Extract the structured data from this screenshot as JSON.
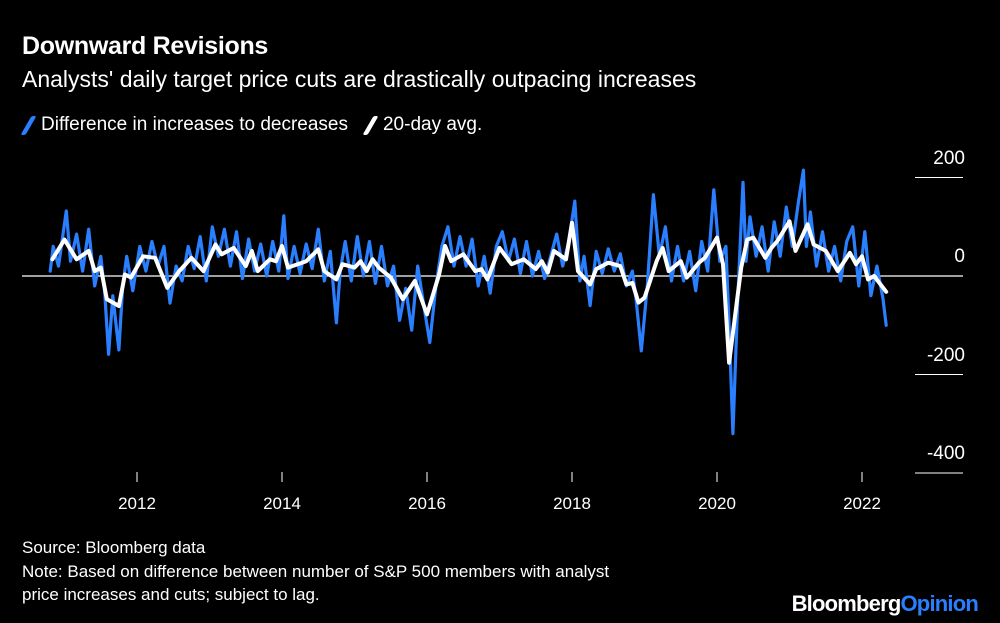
{
  "header": {
    "title": "Downward Revisions",
    "subtitle": "Analysts' daily target price cuts are drastically outpacing increases"
  },
  "footer": {
    "source": "Source: Bloomberg data",
    "note_line1": "Note: Based on difference between number of S&P 500 members with analyst",
    "note_line2": "price increases and cuts; subject to lag.",
    "logo_part1": "Bloomberg",
    "logo_part2": "Opinion"
  },
  "chart_data": {
    "type": "line",
    "title": "Downward Revisions",
    "subtitle": "Analysts' daily target price cuts are drastically outpacing increases",
    "xlabel": "",
    "ylabel": "",
    "ylim": [
      -400,
      200
    ],
    "yticks": [
      "200",
      "0",
      "-200",
      "-400"
    ],
    "xticks": [
      "2012",
      "2014",
      "2016",
      "2018",
      "2020",
      "2022"
    ],
    "grid": false,
    "legend_position": "top-left",
    "colors": {
      "background": "#000000",
      "difference": "#2a7fff",
      "avg": "#ffffff",
      "logo_accent": "#2a7fff"
    },
    "series": [
      {
        "name": "Difference in increases to decreases",
        "x": [
          "2010-10-20",
          "2010-11-05",
          "2010-12-01",
          "2011-01-10",
          "2011-02-01",
          "2011-03-01",
          "2011-04-01",
          "2011-05-01",
          "2011-06-01",
          "2011-07-01",
          "2011-07-20",
          "2011-08-10",
          "2011-09-01",
          "2011-10-01",
          "2011-10-20",
          "2011-11-10",
          "2011-12-10",
          "2012-01-15",
          "2012-02-15",
          "2012-03-15",
          "2012-04-15",
          "2012-05-15",
          "2012-06-15",
          "2012-07-15",
          "2012-08-15",
          "2012-09-15",
          "2012-10-15",
          "2012-11-15",
          "2012-12-15",
          "2013-01-15",
          "2013-02-15",
          "2013-03-15",
          "2013-04-15",
          "2013-05-15",
          "2013-06-15",
          "2013-07-15",
          "2013-08-15",
          "2013-09-15",
          "2013-10-15",
          "2013-11-15",
          "2013-12-15",
          "2014-01-10",
          "2014-02-01",
          "2014-03-01",
          "2014-04-01",
          "2014-05-01",
          "2014-06-01",
          "2014-07-01",
          "2014-08-01",
          "2014-09-01",
          "2014-10-01",
          "2014-10-20",
          "2014-11-15",
          "2014-12-15",
          "2015-01-15",
          "2015-02-15",
          "2015-03-15",
          "2015-04-15",
          "2015-05-15",
          "2015-06-15",
          "2015-07-15",
          "2015-08-15",
          "2015-09-15",
          "2015-10-15",
          "2015-11-15",
          "2015-12-15",
          "2016-01-15",
          "2016-02-15",
          "2016-03-15",
          "2016-04-15",
          "2016-05-15",
          "2016-06-15",
          "2016-07-15",
          "2016-08-15",
          "2016-09-15",
          "2016-10-15",
          "2016-11-15",
          "2016-12-15",
          "2017-01-15",
          "2017-02-15",
          "2017-03-15",
          "2017-04-15",
          "2017-05-15",
          "2017-06-15",
          "2017-07-15",
          "2017-08-15",
          "2017-09-15",
          "2017-10-15",
          "2017-11-15",
          "2017-12-15",
          "2018-01-15",
          "2018-02-10",
          "2018-03-01",
          "2018-04-01",
          "2018-05-01",
          "2018-06-01",
          "2018-07-01",
          "2018-08-01",
          "2018-09-01",
          "2018-10-01",
          "2018-11-01",
          "2018-11-20",
          "2018-12-15",
          "2019-01-15",
          "2019-02-15",
          "2019-03-15",
          "2019-04-15",
          "2019-05-15",
          "2019-06-15",
          "2019-07-15",
          "2019-08-15",
          "2019-09-15",
          "2019-10-15",
          "2019-11-15",
          "2019-12-15",
          "2020-01-15",
          "2020-02-15",
          "2020-03-01",
          "2020-03-20",
          "2020-04-15",
          "2020-05-10",
          "2020-05-25",
          "2020-06-15",
          "2020-07-15",
          "2020-08-15",
          "2020-09-15",
          "2020-10-15",
          "2020-11-15",
          "2020-12-15",
          "2021-01-15",
          "2021-02-15",
          "2021-03-10",
          "2021-03-25",
          "2021-04-15",
          "2021-05-15",
          "2021-06-15",
          "2021-07-15",
          "2021-08-15",
          "2021-09-15",
          "2021-10-15",
          "2021-11-15",
          "2021-12-15",
          "2022-01-15",
          "2022-02-15",
          "2022-03-15",
          "2022-04-15",
          "2022-05-01"
        ],
        "values": [
          10,
          60,
          20,
          132,
          30,
          85,
          10,
          95,
          -20,
          40,
          -30,
          -159,
          -40,
          -150,
          -20,
          40,
          -30,
          60,
          10,
          70,
          20,
          60,
          -55,
          20,
          -10,
          60,
          15,
          80,
          -10,
          100,
          40,
          95,
          20,
          90,
          -5,
          75,
          10,
          65,
          0,
          70,
          10,
          122,
          -5,
          60,
          5,
          65,
          15,
          95,
          -10,
          50,
          -95,
          10,
          70,
          -10,
          80,
          0,
          70,
          -15,
          60,
          -20,
          20,
          -90,
          -25,
          -110,
          20,
          -60,
          -135,
          -20,
          60,
          100,
          20,
          80,
          20,
          75,
          -20,
          40,
          -35,
          60,
          90,
          30,
          75,
          5,
          70,
          0,
          50,
          -5,
          40,
          85,
          20,
          70,
          152,
          -10,
          40,
          -60,
          50,
          5,
          55,
          10,
          45,
          -20,
          10,
          -50,
          -152,
          -20,
          165,
          40,
          100,
          -10,
          60,
          -10,
          50,
          -30,
          70,
          10,
          175,
          30,
          60,
          -100,
          -320,
          -40,
          190,
          30,
          120,
          40,
          100,
          10,
          110,
          40,
          140,
          60,
          150,
          215,
          60,
          130,
          20,
          90,
          10,
          60,
          -10,
          70,
          100,
          -20,
          90,
          -40,
          20,
          -45,
          -100
        ]
      },
      {
        "name": "20-day avg.",
        "x": [
          "2010-11",
          "2011-01",
          "2011-03",
          "2011-05",
          "2011-06",
          "2011-07",
          "2011-08",
          "2011-10",
          "2011-11",
          "2011-12",
          "2012-02",
          "2012-04",
          "2012-06",
          "2012-08",
          "2012-10",
          "2012-12",
          "2013-02",
          "2013-03",
          "2013-05",
          "2013-07",
          "2013-08",
          "2013-09",
          "2013-11",
          "2013-12",
          "2014-01",
          "2014-02",
          "2014-05",
          "2014-07",
          "2014-08",
          "2014-10",
          "2014-11",
          "2015-01",
          "2015-02",
          "2015-03",
          "2015-04",
          "2015-05",
          "2015-07",
          "2015-09",
          "2015-11",
          "2016-01",
          "2016-03",
          "2016-04",
          "2016-05",
          "2016-07",
          "2016-09",
          "2016-10",
          "2016-11",
          "2017-01",
          "2017-03",
          "2017-05",
          "2017-07",
          "2017-08",
          "2017-09",
          "2017-10",
          "2017-12",
          "2018-01",
          "2018-02",
          "2018-04",
          "2018-05",
          "2018-07",
          "2018-09",
          "2018-10",
          "2018-11",
          "2018-12",
          "2019-01",
          "2019-03",
          "2019-04",
          "2019-05",
          "2019-07",
          "2019-08",
          "2019-10",
          "2019-11",
          "2020-01",
          "2020-02",
          "2020-03",
          "2020-05",
          "2020-06",
          "2020-07",
          "2020-09",
          "2020-10",
          "2020-11",
          "2021-01",
          "2021-02",
          "2021-04",
          "2021-05",
          "2021-07",
          "2021-09",
          "2021-11",
          "2021-12",
          "2022-01",
          "2022-02",
          "2022-03",
          "2022-05"
        ],
        "values": [
          34,
          74,
          34,
          51,
          10,
          17,
          -47,
          -61,
          3,
          -3,
          40,
          37,
          -24,
          10,
          37,
          10,
          64,
          44,
          57,
          20,
          51,
          10,
          34,
          30,
          61,
          17,
          30,
          54,
          10,
          -7,
          24,
          17,
          30,
          10,
          34,
          17,
          -3,
          -47,
          -10,
          -78,
          3,
          61,
          30,
          44,
          10,
          14,
          -7,
          57,
          24,
          34,
          14,
          30,
          7,
          51,
          34,
          108,
          10,
          -17,
          14,
          27,
          20,
          -17,
          -14,
          -54,
          -44,
          30,
          57,
          10,
          30,
          -3,
          27,
          37,
          78,
          24,
          -176,
          17,
          74,
          78,
          37,
          57,
          71,
          111,
          51,
          105,
          64,
          51,
          10,
          47,
          24,
          40,
          -7,
          0,
          -32
        ]
      }
    ]
  }
}
